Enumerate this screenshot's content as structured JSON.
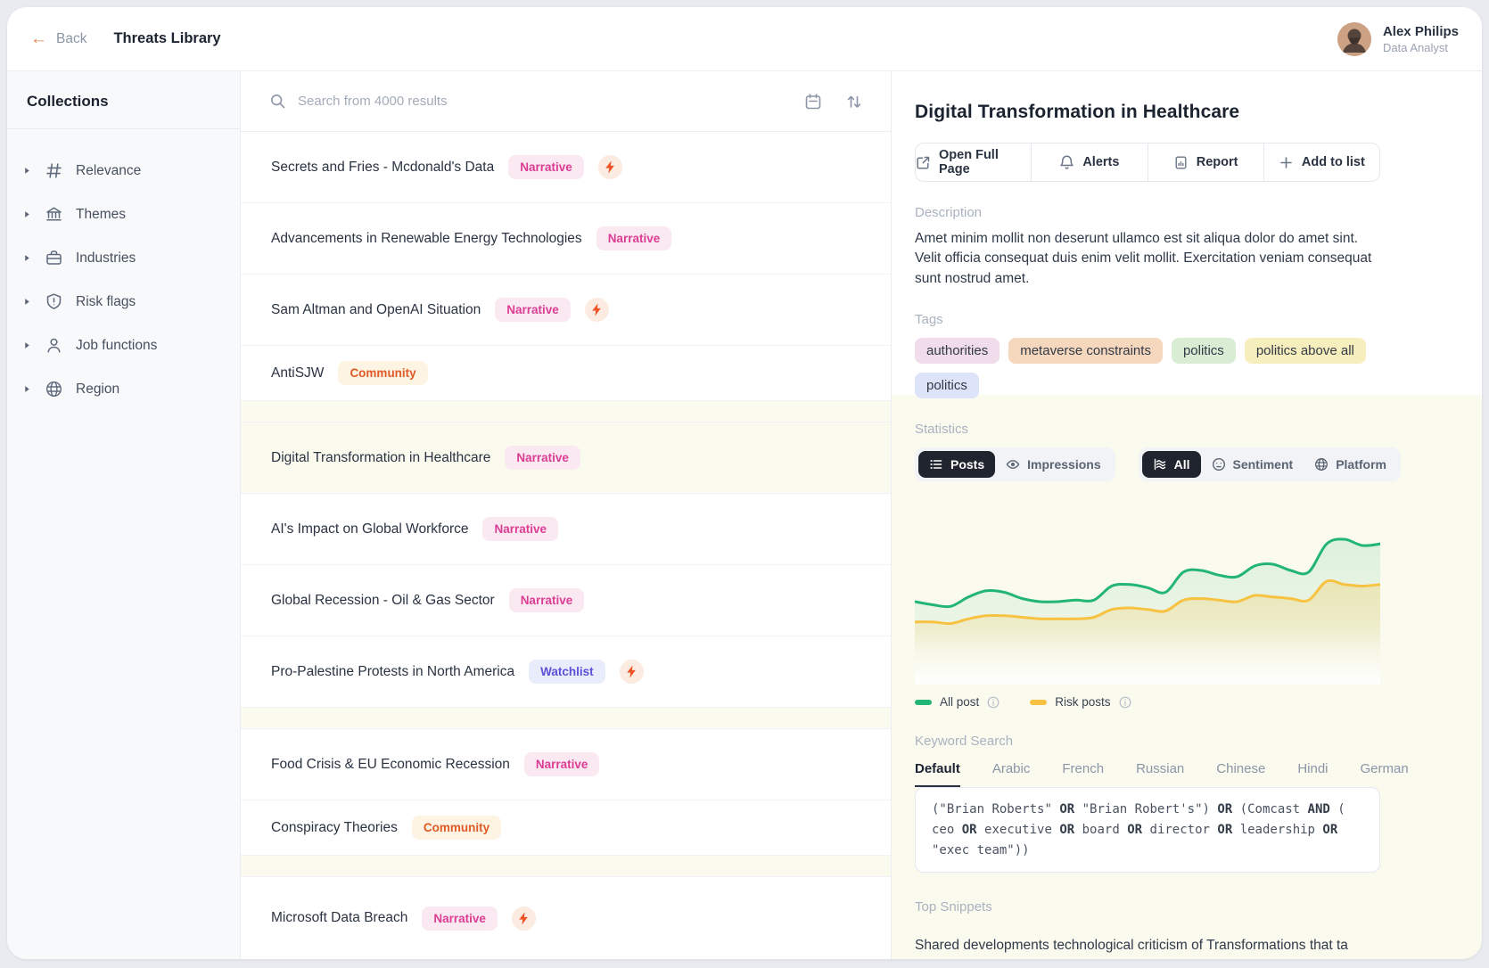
{
  "header": {
    "back_label": "Back",
    "title": "Threats Library",
    "user": {
      "name": "Alex Philips",
      "role": "Data Analyst"
    }
  },
  "sidebar": {
    "title": "Collections",
    "items": [
      {
        "icon": "hash-icon",
        "label": "Relevance"
      },
      {
        "icon": "bank-icon",
        "label": "Themes"
      },
      {
        "icon": "briefcase-icon",
        "label": "Industries"
      },
      {
        "icon": "shield-alert-icon",
        "label": "Risk flags"
      },
      {
        "icon": "person-icon",
        "label": "Job functions"
      },
      {
        "icon": "globe-icon",
        "label": "Region"
      }
    ]
  },
  "list": {
    "search_placeholder": "Search from 4000 results",
    "rows": [
      {
        "title": "Secrets and Fries - Mcdonald's Data",
        "badge": "Narrative",
        "type": "narrative",
        "bolt": true
      },
      {
        "title": "Advancements in Renewable Energy Technologies",
        "badge": "Narrative",
        "type": "narrative"
      },
      {
        "title": "Sam Altman and OpenAI Situation",
        "badge": "Narrative",
        "type": "narrative",
        "bolt": true
      },
      {
        "title": "AntiSJW",
        "badge": "Community",
        "type": "community",
        "short": true,
        "gap_after": true
      },
      {
        "title": "Digital Transformation in Healthcare",
        "badge": "Narrative",
        "type": "narrative",
        "selected": true
      },
      {
        "title": "AI's Impact on Global Workforce",
        "badge": "Narrative",
        "type": "narrative"
      },
      {
        "title": "Global Recession - Oil & Gas Sector",
        "badge": "Narrative",
        "type": "narrative"
      },
      {
        "title": "Pro-Palestine Protests in North America",
        "badge": "Watchlist",
        "type": "watchlist",
        "bolt": true,
        "gap_after": true
      },
      {
        "title": "Food Crisis & EU Economic Recession",
        "badge": "Narrative",
        "type": "narrative"
      },
      {
        "title": "Conspiracy Theories",
        "badge": "Community",
        "type": "community",
        "short": true,
        "gap_after": true
      },
      {
        "title": "Microsoft Data Breach",
        "badge": "Narrative",
        "type": "narrative",
        "bolt": true,
        "last": true
      }
    ]
  },
  "detail": {
    "title": "Digital Transformation in Healthcare",
    "actions": [
      {
        "icon": "external-link-icon",
        "label": "Open Full Page"
      },
      {
        "icon": "bell-icon",
        "label": "Alerts"
      },
      {
        "icon": "report-icon",
        "label": "Report"
      },
      {
        "icon": "plus-icon",
        "label": "Add to list"
      }
    ],
    "description": {
      "label": "Description",
      "text": "Amet minim mollit non deserunt ullamco est sit aliqua dolor do amet sint. Velit officia consequat duis enim velit mollit.  Exercitation veniam consequat sunt nostrud amet."
    },
    "tags": {
      "label": "Tags",
      "items": [
        {
          "text": "authorities",
          "color": "#f0dcea"
        },
        {
          "text": "metaverse constraints",
          "color": "#f4d7bd"
        },
        {
          "text": "politics",
          "color": "#d9ecd4"
        },
        {
          "text": "politics above all",
          "color": "#f7eebe"
        },
        {
          "text": "politics",
          "color": "#dde3f8"
        }
      ]
    },
    "statistics": {
      "label": "Statistics",
      "metric_toggle": [
        {
          "icon": "list-icon",
          "label": "Posts",
          "active": true
        },
        {
          "icon": "eye-icon",
          "label": "Impressions",
          "active": false
        }
      ],
      "view_toggle": [
        {
          "icon": "waves-icon",
          "label": "All",
          "active": true
        },
        {
          "icon": "smiley-icon",
          "label": "Sentiment",
          "active": false
        },
        {
          "icon": "platform-globe-icon",
          "label": "Platform",
          "active": false
        }
      ]
    },
    "keyword_search": {
      "label": "Keyword Search",
      "tabs": [
        "Default",
        "Arabic",
        "French",
        "Russian",
        "Chinese",
        "Hindi",
        "German"
      ],
      "active_tab": "Default",
      "query": "(\"Brian Roberts\" OR \"Brian Robert's\") OR (Comcast AND ( ceo OR executive OR board OR director OR leadership OR \"exec team\"))"
    },
    "top_snippets": {
      "label": "Top Snippets",
      "preview": "Shared developments technological criticism of Transformations that ta"
    }
  },
  "chart_data": {
    "type": "area",
    "title": "",
    "xlabel": "",
    "ylabel": "",
    "axes_hidden": true,
    "grid": false,
    "legend_position": "bottom-left",
    "ylim": [
      0,
      100
    ],
    "x": [
      0,
      1,
      2,
      3,
      4,
      5,
      6,
      7,
      8,
      9,
      10,
      11,
      12,
      13,
      14,
      15,
      16,
      17,
      18,
      19,
      20,
      21,
      22,
      23,
      24,
      25,
      26
    ],
    "series": [
      {
        "name": "All post",
        "color": "#22b573",
        "values": [
          44,
          42,
          41,
          47,
          51,
          50,
          46,
          44,
          44,
          45,
          45,
          54,
          55,
          53,
          50,
          63,
          64,
          61,
          60,
          67,
          68,
          64,
          63,
          81,
          84,
          80,
          81
        ]
      },
      {
        "name": "Risk posts",
        "color": "#f7c242",
        "values": [
          31,
          31,
          30,
          33,
          35,
          35,
          34,
          33,
          33,
          33,
          34,
          39,
          40,
          39,
          38,
          45,
          46,
          45,
          44,
          48,
          47,
          46,
          45,
          57,
          55,
          54,
          55
        ]
      }
    ]
  }
}
